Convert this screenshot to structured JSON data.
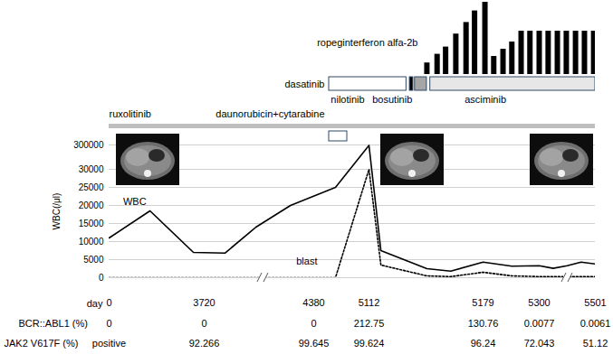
{
  "chart_data": [
    {
      "type": "bar",
      "title": "ropeginterferon alfa-2b",
      "x": [
        5146,
        5152,
        5157,
        5163,
        5169,
        5174,
        5183,
        5202,
        5222,
        5241,
        5261,
        5280,
        5300,
        5332,
        5365,
        5397,
        5430,
        5462,
        5495
      ],
      "values": [
        1.6,
        2.8,
        3.8,
        5.6,
        7.2,
        8.8,
        10,
        2.5,
        3.5,
        4.5,
        6,
        6,
        6,
        6,
        6,
        6,
        6,
        6,
        6
      ],
      "color": "#000000",
      "ylim": [
        0,
        10
      ],
      "tick_labels": false
    },
    {
      "type": "timeline",
      "tasks": [
        {
          "name": "ruxolitinib",
          "start": 0,
          "end": 5501,
          "color": "#bfbfbf"
        },
        {
          "name": "daunorubicin+cytarabine",
          "start": 4584,
          "end": 4824,
          "color": "#ffffff"
        },
        {
          "name": "dasatinib",
          "start": 4584,
          "end": 5134,
          "color": "#ffffff"
        },
        {
          "name": "nilotinib",
          "start": 5136,
          "end": 5138,
          "color": "#000000"
        },
        {
          "name": "bosutinib",
          "start": 5139,
          "end": 5146,
          "color": "#a6a6a6"
        },
        {
          "name": "asciminib",
          "start": 5148,
          "end": 5501,
          "color": "#e7e7e7"
        }
      ]
    },
    {
      "type": "line",
      "x_label": "day",
      "y_label": "WBC(/μl)",
      "x": [
        0,
        1600,
        3300,
        3845,
        4032,
        4240,
        4668,
        5112,
        5119,
        5146,
        5160,
        5179,
        5241,
        5300,
        5350,
        5400,
        5450,
        5501
      ],
      "series": [
        {
          "name": "WBC",
          "color": "#000000",
          "line_style": "solid",
          "values": [
            11000,
            18500,
            7000,
            6800,
            14000,
            20000,
            25000,
            295000,
            7500,
            2500,
            1800,
            4300,
            3200,
            3300,
            2600,
            3300,
            4300,
            3800
          ]
        },
        {
          "name": "blast",
          "color": "#000000",
          "line_style": "dotted",
          "values": [
            0,
            0,
            0,
            0,
            0,
            0,
            0,
            30000,
            3500,
            500,
            300,
            1500,
            500,
            300,
            300,
            300,
            300,
            300
          ]
        }
      ],
      "xlim": [
        0,
        5501
      ],
      "xticks": [
        0,
        3720,
        4380,
        5112,
        5179,
        5300,
        5501
      ],
      "ylim": [
        0,
        300000
      ],
      "yticks": [
        0,
        5000,
        10000,
        15000,
        20000,
        25000,
        30000,
        300000
      ],
      "grid": true,
      "measurements": [
        {
          "name": "BCR::ABL1 (%)",
          "x": [
            0,
            3720,
            4380,
            5112,
            5179,
            5300,
            5501
          ],
          "values": [
            0,
            0,
            0,
            212.75,
            130.76,
            0.0077,
            0.0061
          ]
        },
        {
          "name": "JAK2 V617F (%)",
          "x": [
            0,
            3720,
            4380,
            5112,
            5179,
            5300,
            5501
          ],
          "values": [
            null,
            92.266,
            99.645,
            99.624,
            96.24,
            72.043,
            51.12
          ],
          "value_labels": [
            "positive",
            "92.266",
            "99.645",
            "99.624",
            "96.24",
            "72.043",
            "51.12"
          ]
        }
      ]
    }
  ]
}
